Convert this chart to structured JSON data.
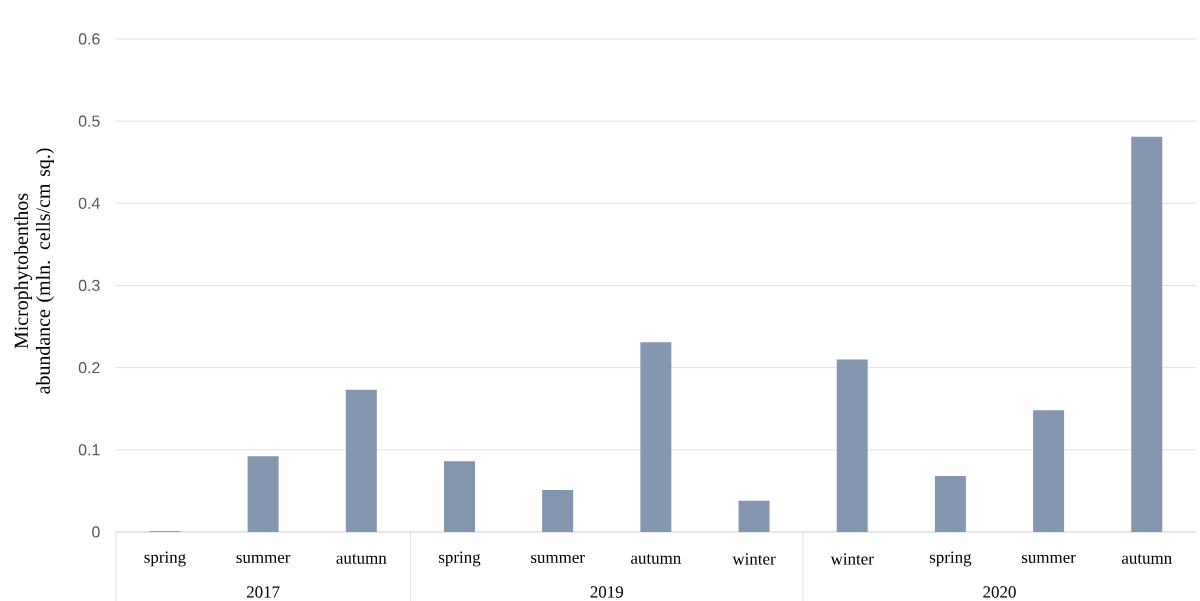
{
  "chart_data": {
    "type": "bar",
    "ylabel": "Microphytobenthos abundance (mln. cells/cm sq.)",
    "categories": [
      "spring",
      "summer",
      "autumn",
      "spring",
      "summer",
      "autumn",
      "winter",
      "winter",
      "spring",
      "summer",
      "autumn"
    ],
    "values": [
      0.001,
      0.092,
      0.173,
      0.086,
      0.051,
      0.231,
      0.038,
      0.21,
      0.068,
      0.148,
      0.481
    ],
    "color": "#8496b0",
    "ylim": [
      0,
      0.6
    ],
    "yticks": [
      0,
      0.1,
      0.2,
      0.3,
      0.4,
      0.5,
      0.6
    ],
    "grid": "y",
    "annotations": [
      "2017",
      "2019",
      "2020"
    ]
  }
}
